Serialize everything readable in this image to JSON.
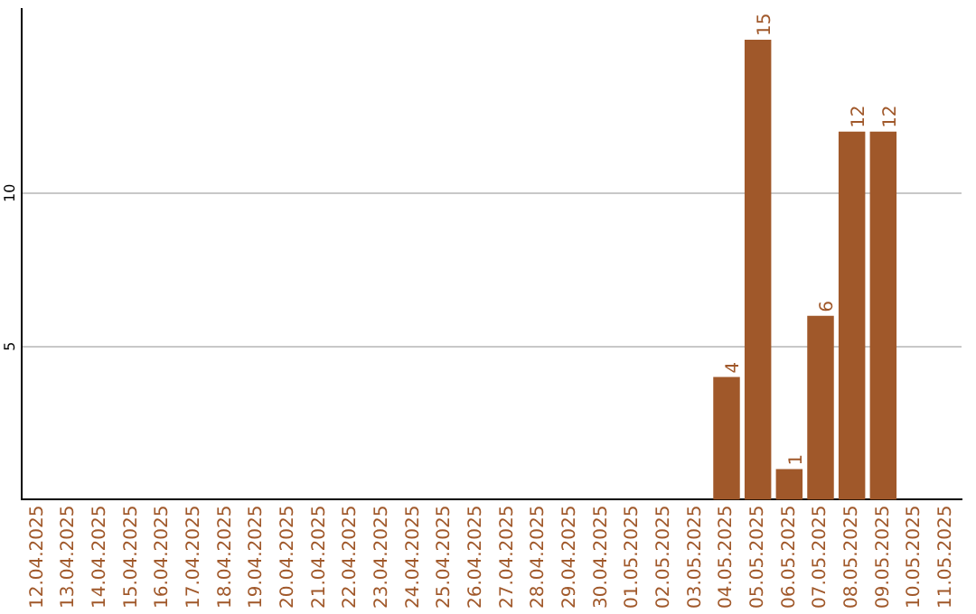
{
  "chart_data": {
    "type": "bar",
    "categories": [
      "12.04.2025",
      "13.04.2025",
      "14.04.2025",
      "15.04.2025",
      "16.04.2025",
      "17.04.2025",
      "18.04.2025",
      "19.04.2025",
      "20.04.2025",
      "21.04.2025",
      "22.04.2025",
      "23.04.2025",
      "24.04.2025",
      "25.04.2025",
      "26.04.2025",
      "27.04.2025",
      "28.04.2025",
      "29.04.2025",
      "30.04.2025",
      "01.05.2025",
      "02.05.2025",
      "03.05.2025",
      "04.05.2025",
      "05.05.2025",
      "06.05.2025",
      "07.05.2025",
      "08.05.2025",
      "09.05.2025",
      "10.05.2025",
      "11.05.2025"
    ],
    "values": [
      0,
      0,
      0,
      0,
      0,
      0,
      0,
      0,
      0,
      0,
      0,
      0,
      0,
      0,
      0,
      0,
      0,
      0,
      0,
      0,
      0,
      0,
      4,
      15,
      1,
      6,
      12,
      12,
      0,
      0
    ],
    "value_labels": [
      null,
      null,
      null,
      null,
      null,
      null,
      null,
      null,
      null,
      null,
      null,
      null,
      null,
      null,
      null,
      null,
      null,
      null,
      null,
      null,
      null,
      null,
      "4",
      "15",
      "1",
      "6",
      "12",
      "12",
      null,
      null
    ],
    "color": "#a0582a",
    "ylim": [
      0,
      16
    ],
    "yticks": [
      5,
      10
    ],
    "grid": "y",
    "legend": false
  }
}
